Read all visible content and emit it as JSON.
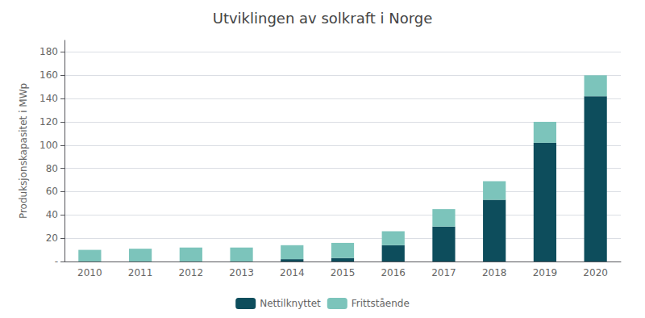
{
  "chart_data": {
    "type": "bar",
    "title": "Utviklingen av solkraft i Norge",
    "ylabel": "Produksjonskapasitet i MWp",
    "categories": [
      "2010",
      "2011",
      "2012",
      "2013",
      "2014",
      "2015",
      "2016",
      "2017",
      "2018",
      "2019",
      "2020"
    ],
    "series": [
      {
        "name": "Nettilknyttet",
        "color": "#0d4d5c",
        "values": [
          0,
          0,
          0,
          0,
          2,
          3,
          14,
          30,
          53,
          102,
          142
        ]
      },
      {
        "name": "Frittstående",
        "color": "#7cc4bb",
        "values": [
          10,
          11,
          12,
          12,
          12,
          13,
          12,
          15,
          16,
          18,
          18
        ]
      }
    ],
    "stacked": true,
    "ylim": [
      0,
      190
    ],
    "yticks": [
      {
        "value": 0,
        "label": "-"
      },
      20,
      40,
      60,
      80,
      100,
      120,
      140,
      160,
      180
    ],
    "grid": true,
    "legend": "bottom"
  }
}
